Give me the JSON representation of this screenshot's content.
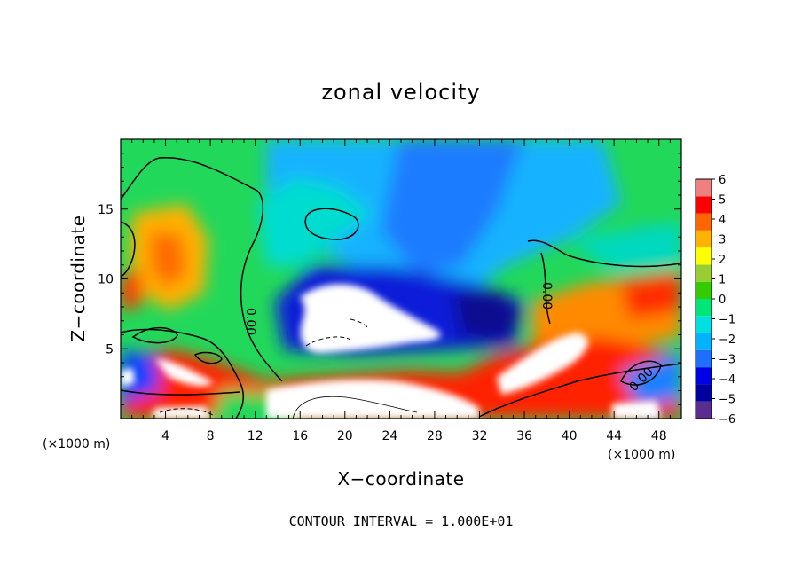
{
  "chart_data": {
    "type": "heatmap",
    "title": "zonal velocity",
    "xlabel": "X−coordinate",
    "ylabel": "Z−coordinate",
    "x_unit": "(×1000 m)",
    "y_unit": "(×1000 m)",
    "xlim": [
      0,
      50
    ],
    "ylim": [
      0,
      20
    ],
    "x_ticks": [
      4,
      8,
      12,
      16,
      20,
      24,
      28,
      32,
      36,
      40,
      44,
      48
    ],
    "x_tick_labels": [
      "4",
      "8",
      "12",
      "16",
      "20",
      "24",
      "28",
      "32",
      "36",
      "40",
      "44",
      "48"
    ],
    "y_ticks": [
      5,
      10,
      15
    ],
    "y_tick_labels": [
      "5",
      "10",
      "15"
    ],
    "colorbar": {
      "min": -6,
      "max": 6,
      "ticks": [
        6,
        5,
        4,
        3,
        2,
        1,
        0,
        -1,
        -2,
        -3,
        -4,
        -5,
        -6
      ],
      "tick_labels": [
        "6",
        "5",
        "4",
        "3",
        "2",
        "1",
        "0",
        "−1",
        "−2",
        "−3",
        "−4",
        "−5",
        "−6"
      ],
      "colors": [
        "#5c2d91",
        "#0000a0",
        "#0000e6",
        "#1f6fff",
        "#00b2ff",
        "#00e0e0",
        "#00e676",
        "#33cc00",
        "#9acd32",
        "#ffff00",
        "#ffb300",
        "#ff6600",
        "#ff0000",
        "#f08080"
      ]
    },
    "zero_contour_labels": [
      "0.00",
      "0.00",
      "0.00"
    ],
    "caption": "CONTOUR INTERVAL = 1.000E+01",
    "grid": false
  },
  "colors": {
    "background": "#ffffff",
    "saturated_high_or_low": "#ffffff"
  }
}
